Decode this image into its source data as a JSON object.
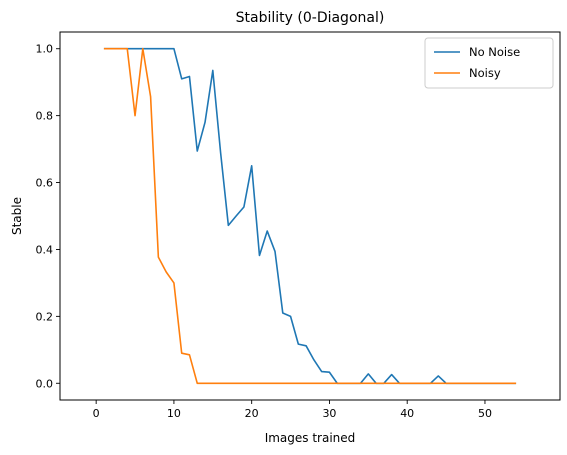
{
  "chart_data": {
    "type": "line",
    "title": "Stability (0-Diagonal)",
    "xlabel": "Images trained",
    "ylabel": "Stable",
    "xlim": [
      -4.65,
      59.65
    ],
    "ylim": [
      -0.05,
      1.05
    ],
    "xticks": [
      0,
      10,
      20,
      30,
      40,
      50
    ],
    "yticks": [
      0.0,
      0.2,
      0.4,
      0.6,
      0.8,
      1.0
    ],
    "xtick_labels": [
      "0",
      "10",
      "20",
      "30",
      "40",
      "50"
    ],
    "ytick_labels": [
      "0.0",
      "0.2",
      "0.4",
      "0.6",
      "0.8",
      "1.0"
    ],
    "grid": false,
    "legend": "upper right",
    "x": [
      1,
      2,
      3,
      4,
      5,
      6,
      7,
      8,
      9,
      10,
      11,
      12,
      13,
      14,
      15,
      16,
      17,
      18,
      19,
      20,
      21,
      22,
      23,
      24,
      25,
      26,
      27,
      28,
      29,
      30,
      31,
      32,
      33,
      34,
      35,
      36,
      37,
      38,
      39,
      40,
      41,
      42,
      43,
      44,
      45,
      46,
      47,
      48,
      49,
      50,
      51,
      52,
      53,
      54
    ],
    "series": [
      {
        "name": "No Noise",
        "color": "#1f77b4",
        "values": [
          1,
          1,
          1,
          1,
          1,
          1,
          1,
          1,
          1,
          1,
          0.91,
          0.917,
          0.694,
          0.78,
          0.935,
          0.69,
          0.472,
          0.5,
          0.527,
          0.65,
          0.382,
          0.455,
          0.394,
          0.21,
          0.2,
          0.117,
          0.112,
          0.07,
          0.035,
          0.033,
          0,
          0,
          0,
          0,
          0.028,
          0,
          0,
          0.026,
          0,
          0,
          0,
          0,
          0,
          0.022,
          0,
          0,
          0,
          0,
          0,
          0,
          0,
          0,
          0,
          0
        ]
      },
      {
        "name": "Noisy",
        "color": "#ff7f0e",
        "values": [
          1,
          1,
          1,
          1,
          0.8,
          1,
          0.857,
          0.377,
          0.333,
          0.3,
          0.09,
          0.085,
          0,
          0,
          0,
          0,
          0,
          0,
          0,
          0,
          0,
          0,
          0,
          0,
          0,
          0,
          0,
          0,
          0,
          0,
          0,
          0,
          0,
          0,
          0,
          0,
          0,
          0,
          0,
          0,
          0,
          0,
          0,
          0,
          0,
          0,
          0,
          0,
          0,
          0,
          0,
          0,
          0,
          0
        ]
      }
    ]
  }
}
